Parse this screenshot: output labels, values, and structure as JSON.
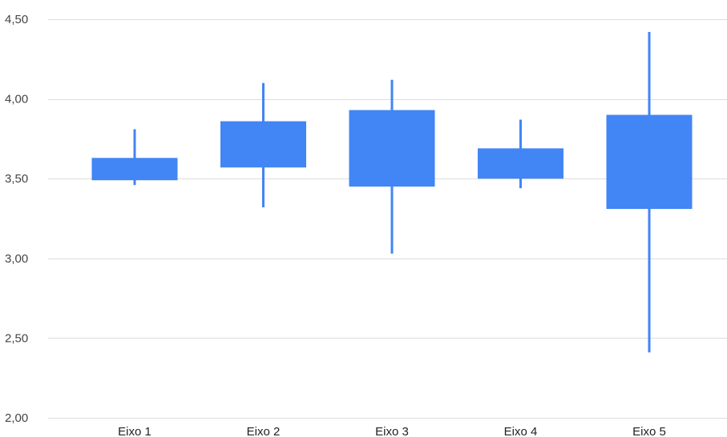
{
  "chart_data": {
    "type": "candlestick",
    "title": "",
    "xlabel": "",
    "ylabel": "",
    "ylim": [
      2.0,
      4.5
    ],
    "y_ticks": [
      {
        "value": 2.0,
        "label": "2,00"
      },
      {
        "value": 2.5,
        "label": "2,50"
      },
      {
        "value": 3.0,
        "label": "3,00"
      },
      {
        "value": 3.5,
        "label": "3,50"
      },
      {
        "value": 4.0,
        "label": "4,00"
      },
      {
        "value": 4.5,
        "label": "4,50"
      }
    ],
    "grid": true,
    "legend": "none",
    "color": "#4285f4",
    "gridline_color": "#dddddd",
    "categories": [
      "Eixo 1",
      "Eixo 2",
      "Eixo 3",
      "Eixo 4",
      "Eixo 5"
    ],
    "candles": [
      {
        "category": "Eixo 1",
        "low": 3.46,
        "box_low": 3.49,
        "box_high": 3.63,
        "high": 3.81
      },
      {
        "category": "Eixo 2",
        "low": 3.32,
        "box_low": 3.57,
        "box_high": 3.86,
        "high": 4.1
      },
      {
        "category": "Eixo 3",
        "low": 3.03,
        "box_low": 3.45,
        "box_high": 3.93,
        "high": 4.12
      },
      {
        "category": "Eixo 4",
        "low": 3.44,
        "box_low": 3.5,
        "box_high": 3.69,
        "high": 3.87
      },
      {
        "category": "Eixo 5",
        "low": 2.41,
        "box_low": 3.31,
        "box_high": 3.9,
        "high": 4.42
      }
    ]
  }
}
